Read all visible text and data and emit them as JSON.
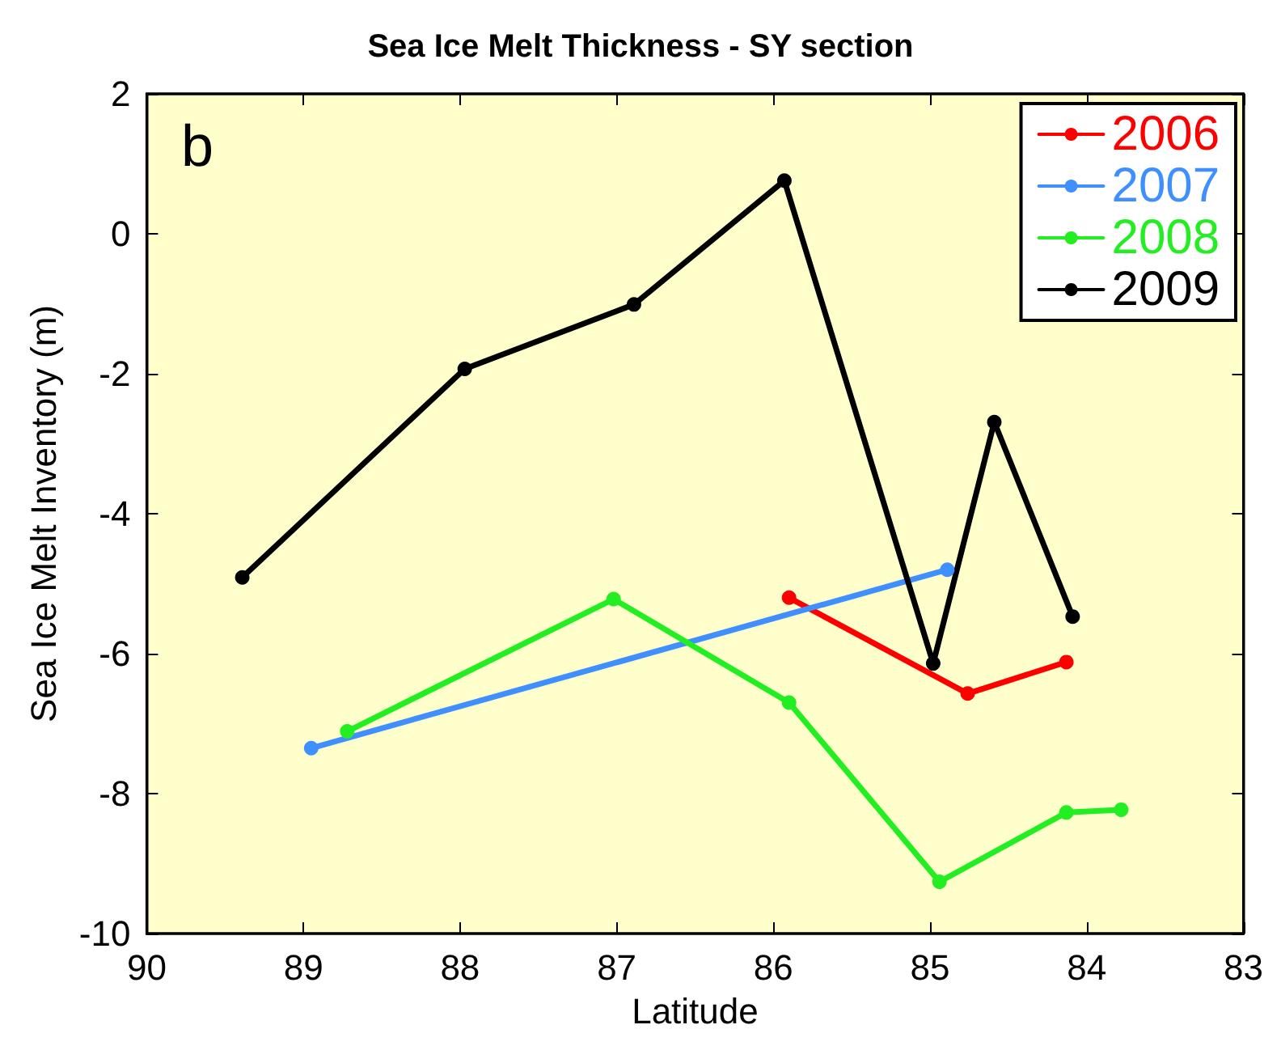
{
  "chart_data": {
    "type": "line",
    "title": "Sea Ice Melt Thickness - SY section",
    "xlabel": "Latitude",
    "ylabel": "Sea Ice Melt Inventory (m)",
    "annotations": [
      "b"
    ],
    "xlim": [
      90,
      83
    ],
    "xticks": [
      90,
      89,
      88,
      87,
      86,
      85,
      84,
      83
    ],
    "ylim": [
      -10,
      2
    ],
    "yticks": [
      -10,
      -8,
      -6,
      -4,
      -2,
      0,
      2
    ],
    "grid": false,
    "legend": "top right",
    "marker": "circle",
    "line_style": "solid",
    "series": [
      {
        "name": "2006",
        "color": "#ff0000",
        "x": [
          85.9,
          84.76,
          84.13
        ],
        "values": [
          -5.2,
          -6.57,
          -6.12
        ]
      },
      {
        "name": "2007",
        "color": "#3f8fff",
        "x": [
          88.95,
          84.89
        ],
        "values": [
          -7.35,
          -4.8
        ]
      },
      {
        "name": "2008",
        "color": "#22ee22",
        "x": [
          88.72,
          87.02,
          85.9,
          84.94,
          84.13,
          83.78
        ],
        "values": [
          -7.11,
          -5.22,
          -6.7,
          -9.26,
          -8.27,
          -8.23
        ]
      },
      {
        "name": "2009",
        "color": "#000000",
        "x": [
          89.39,
          87.97,
          86.89,
          85.93,
          84.98,
          84.59,
          84.09
        ],
        "values": [
          -4.91,
          -1.93,
          -1.01,
          0.76,
          -6.14,
          -2.69,
          -5.47
        ]
      }
    ]
  }
}
